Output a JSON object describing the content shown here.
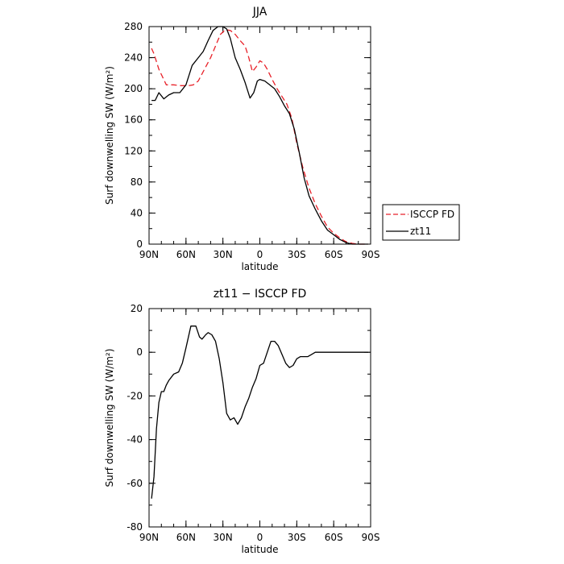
{
  "chart_data": [
    {
      "type": "line",
      "title": "JJA",
      "xlabel": "latitude",
      "ylabel": "Surf downwelling SW (W/m²)",
      "xlim": [
        -90,
        90
      ],
      "ylim": [
        0,
        280
      ],
      "x_ticks": [
        {
          "value": -90,
          "label": "90N"
        },
        {
          "value": -60,
          "label": "60N"
        },
        {
          "value": -30,
          "label": "30N"
        },
        {
          "value": 0,
          "label": "0"
        },
        {
          "value": 30,
          "label": "30S"
        },
        {
          "value": 60,
          "label": "60S"
        },
        {
          "value": 90,
          "label": "90S"
        }
      ],
      "y_ticks": [
        0,
        40,
        80,
        120,
        160,
        200,
        240,
        280
      ],
      "legend_position": "outside-right",
      "series": [
        {
          "name": "ISCCP FD",
          "color": "#e8222a",
          "dash": "dashed",
          "x": [
            -88,
            -86,
            -82,
            -76,
            -70,
            -64,
            -58,
            -54,
            -50,
            -46,
            -40,
            -36,
            -32,
            -28,
            -24,
            -20,
            -16,
            -12,
            -9,
            -6,
            -3,
            0,
            3,
            6,
            10,
            14,
            18,
            22,
            26,
            30,
            35,
            40,
            45,
            50,
            55,
            60,
            65,
            70,
            75,
            80,
            84,
            88
          ],
          "y": [
            252,
            245,
            225,
            205,
            205,
            204,
            204,
            205,
            210,
            222,
            240,
            255,
            270,
            276,
            275,
            270,
            262,
            255,
            240,
            222,
            228,
            236,
            233,
            225,
            212,
            200,
            190,
            180,
            162,
            130,
            98,
            72,
            52,
            36,
            22,
            14,
            8,
            3,
            1,
            0,
            0,
            0
          ]
        },
        {
          "name": "zt11",
          "color": "#000000",
          "dash": "solid",
          "x": [
            -88,
            -85,
            -82,
            -78,
            -74,
            -70,
            -65,
            -60,
            -55,
            -50,
            -46,
            -42,
            -38,
            -34,
            -30,
            -27,
            -24,
            -20,
            -16,
            -12,
            -8,
            -5,
            -2,
            0,
            4,
            8,
            12,
            16,
            20,
            24,
            28,
            32,
            36,
            40,
            45,
            50,
            55,
            60,
            65,
            70,
            75,
            80,
            84,
            88
          ],
          "y": [
            185,
            185,
            195,
            187,
            192,
            195,
            195,
            205,
            230,
            240,
            248,
            262,
            275,
            280,
            280,
            277,
            265,
            240,
            225,
            208,
            188,
            195,
            210,
            212,
            210,
            205,
            200,
            190,
            178,
            168,
            148,
            118,
            85,
            62,
            45,
            30,
            18,
            12,
            6,
            2,
            0,
            0,
            0,
            0
          ]
        }
      ]
    },
    {
      "type": "line",
      "title": "zt11 − ISCCP FD",
      "xlabel": "latitude",
      "ylabel": "Surf downwelling SW (W/m²)",
      "xlim": [
        -90,
        90
      ],
      "ylim": [
        -80,
        20
      ],
      "x_ticks": [
        {
          "value": -90,
          "label": "90N"
        },
        {
          "value": -60,
          "label": "60N"
        },
        {
          "value": -30,
          "label": "30N"
        },
        {
          "value": 0,
          "label": "0"
        },
        {
          "value": 30,
          "label": "30S"
        },
        {
          "value": 60,
          "label": "60S"
        },
        {
          "value": 90,
          "label": "90S"
        }
      ],
      "y_ticks": [
        -80,
        -60,
        -40,
        -20,
        0,
        20
      ],
      "series": [
        {
          "color": "#000000",
          "dash": "solid",
          "x": [
            -88,
            -86,
            -84,
            -82,
            -80,
            -78,
            -76,
            -74,
            -70,
            -66,
            -63,
            -60,
            -56,
            -52,
            -49,
            -47,
            -44,
            -42,
            -39,
            -36,
            -33,
            -30,
            -27,
            -24,
            -21,
            -18,
            -15,
            -12,
            -9,
            -6,
            -3,
            0,
            3,
            6,
            9,
            12,
            15,
            18,
            21,
            24,
            27,
            30,
            33,
            36,
            39,
            42,
            45,
            48,
            51,
            54,
            57,
            60,
            63,
            66,
            69,
            72,
            75,
            78,
            81,
            84,
            88
          ],
          "y": [
            -67,
            -57,
            -35,
            -23,
            -18,
            -18,
            -15,
            -13,
            -10,
            -9,
            -5,
            2,
            12,
            12,
            7,
            6,
            8,
            9,
            8,
            5,
            -3,
            -14,
            -28,
            -31,
            -30,
            -33,
            -30,
            -25,
            -21,
            -16,
            -12,
            -6,
            -5,
            0,
            5,
            5,
            3,
            -1,
            -5,
            -7,
            -6,
            -3,
            -2,
            -2,
            -2,
            -1,
            0,
            0,
            0,
            0,
            0,
            0,
            0,
            0,
            0,
            0,
            0,
            0,
            0,
            0,
            0
          ]
        }
      ]
    }
  ],
  "legend": {
    "items": [
      {
        "label": "ISCCP FD",
        "color": "#e8222a",
        "dash": "dashed"
      },
      {
        "label": "zt11",
        "color": "#000000",
        "dash": "solid"
      }
    ]
  }
}
